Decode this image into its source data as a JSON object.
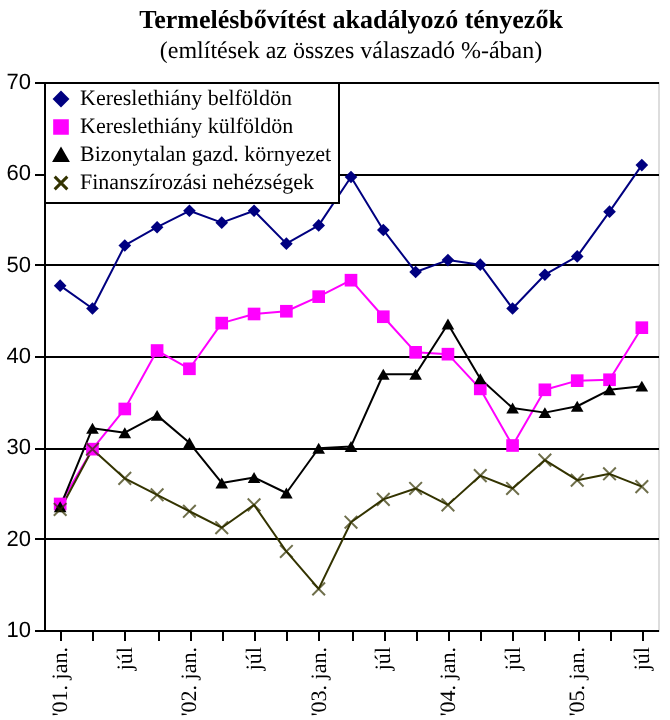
{
  "chart_data": {
    "type": "line",
    "title": "Termelésbővítést akadályozó tényezők",
    "subtitle": "(említések az összes válaszadó %-ában)",
    "categories": [
      "'01. jan.",
      null,
      "júl",
      null,
      "'02. jan.",
      null,
      "júl",
      null,
      "'03. jan.",
      null,
      "júl",
      null,
      "'04. jan.",
      null,
      "júl",
      null,
      "'05. jan.",
      null,
      "júl"
    ],
    "series": [
      {
        "name": "Kereslethiány belföldön",
        "color": "#000080",
        "marker": "diamond",
        "values": [
          47.7,
          45.2,
          52.1,
          54.1,
          55.9,
          54.6,
          55.9,
          52.3,
          54.3,
          59.6,
          53.8,
          49.2,
          50.5,
          50.0,
          45.2,
          48.9,
          50.9,
          55.8,
          60.9
        ]
      },
      {
        "name": "Kereslethiány külföldön",
        "color": "#ff00ff",
        "marker": "square",
        "values": [
          23.8,
          29.8,
          34.2,
          40.6,
          38.6,
          43.6,
          44.6,
          44.9,
          46.5,
          48.3,
          44.3,
          40.4,
          40.2,
          36.4,
          30.2,
          36.3,
          37.3,
          37.4,
          43.1
        ]
      },
      {
        "name": "Bizonytalan gazd. környezet",
        "color": "#000000",
        "marker": "triangle",
        "values": [
          23.5,
          32.1,
          31.6,
          33.5,
          30.5,
          26.1,
          26.7,
          25.0,
          29.9,
          30.1,
          38.0,
          38.0,
          43.5,
          37.5,
          34.3,
          33.8,
          34.5,
          36.3,
          36.7
        ]
      },
      {
        "name": "Finanszírozási nehézségek",
        "color": "#333300",
        "marker": "cross",
        "values": [
          23.2,
          29.8,
          26.6,
          24.8,
          23.0,
          21.2,
          23.7,
          18.6,
          14.5,
          21.8,
          24.3,
          25.5,
          23.7,
          26.9,
          25.5,
          28.6,
          26.4,
          27.1,
          25.7
        ]
      }
    ],
    "ylim": [
      10,
      70
    ],
    "yticks": [
      10,
      20,
      30,
      40,
      50,
      60,
      70
    ],
    "grid": "y",
    "legend": "top left"
  }
}
